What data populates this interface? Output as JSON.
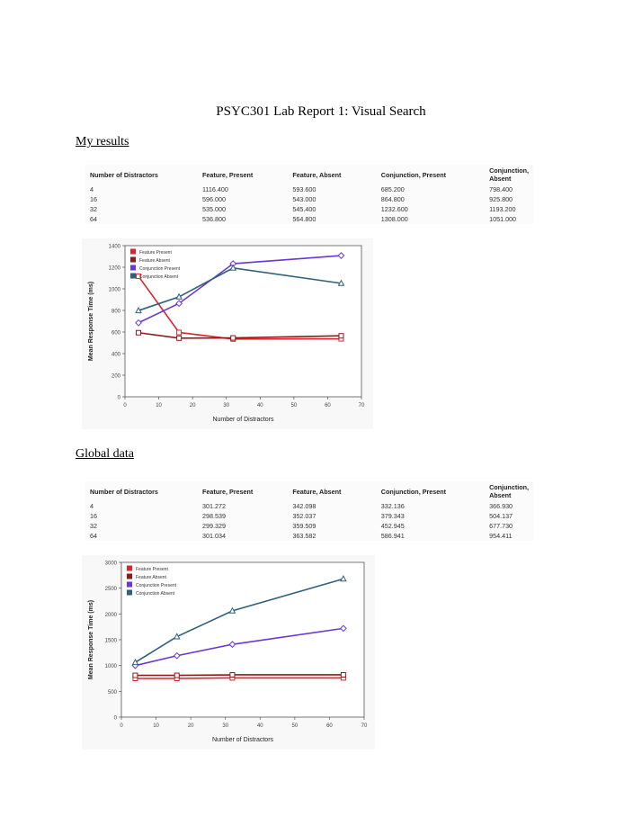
{
  "document": {
    "title": "PSYC301 Lab Report 1: Visual Search",
    "sections": [
      {
        "heading": "My results",
        "table": {
          "headers": [
            "Number of Distractors",
            "Feature, Present",
            "Feature, Absent",
            "Conjunction, Present",
            "Conjunction, Absent"
          ],
          "rows": [
            [
              "4",
              "1116.400",
              "593.600",
              "685.200",
              "798.400"
            ],
            [
              "16",
              "596.000",
              "543.000",
              "864.800",
              "925.800"
            ],
            [
              "32",
              "535.000",
              "545.400",
              "1232.600",
              "1193.200"
            ],
            [
              "64",
              "536.800",
              "564.800",
              "1308.000",
              "1051.000"
            ]
          ]
        }
      },
      {
        "heading": "Global data",
        "table": {
          "headers": [
            "Number of Distractors",
            "Feature, Present",
            "Feature, Absent",
            "Conjunction, Present",
            "Conjunction, Absent"
          ],
          "rows": [
            [
              "4",
              "301.272",
              "342.098",
              "332.136",
              "366.930"
            ],
            [
              "16",
              "298.539",
              "352.037",
              "379.343",
              "504.137"
            ],
            [
              "32",
              "299.329",
              "359.509",
              "452.945",
              "677.730"
            ],
            [
              "64",
              "301.034",
              "363.582",
              "586.941",
              "954.411"
            ]
          ]
        }
      }
    ]
  },
  "chart_data": [
    {
      "type": "line",
      "xlabel": "Number of Distractors",
      "ylabel": "Mean Response Time (ms)",
      "xlim": [
        0,
        70
      ],
      "ylim": [
        0,
        1400
      ],
      "xticks": [
        0,
        10,
        20,
        30,
        40,
        50,
        60,
        70
      ],
      "yticks": [
        0,
        200,
        400,
        600,
        800,
        1000,
        1200,
        1400
      ],
      "legend_position": "top-left",
      "x": [
        4,
        16,
        32,
        64
      ],
      "series": [
        {
          "name": "Feature Present",
          "color": "#d9262e",
          "marker": "square",
          "values": [
            1116.4,
            596.0,
            535.0,
            536.8
          ]
        },
        {
          "name": "Feature Absent",
          "color": "#8e1b1b",
          "marker": "square",
          "values": [
            593.6,
            543.0,
            545.4,
            564.8
          ]
        },
        {
          "name": "Conjunction Present",
          "color": "#6a36d6",
          "marker": "diamond",
          "values": [
            685.2,
            864.8,
            1232.6,
            1308.0
          ]
        },
        {
          "name": "Conjunction Absent",
          "color": "#2e5f7d",
          "marker": "triangle",
          "values": [
            798.4,
            925.8,
            1193.2,
            1051.0
          ]
        }
      ]
    },
    {
      "type": "line",
      "xlabel": "Number of Distractors",
      "ylabel": "Mean Response Time (ms)",
      "xlim": [
        0,
        70
      ],
      "ylim": [
        0,
        3000
      ],
      "xticks": [
        0,
        10,
        20,
        30,
        40,
        50,
        60,
        70
      ],
      "yticks": [
        0,
        500,
        1000,
        1500,
        2000,
        2500,
        3000
      ],
      "legend_position": "top-left",
      "x": [
        4,
        16,
        32,
        64
      ],
      "series": [
        {
          "name": "Feature Present",
          "color": "#d9262e",
          "marker": "square",
          "values": [
            750,
            750,
            760,
            760
          ]
        },
        {
          "name": "Feature Absent",
          "color": "#8e1b1b",
          "marker": "square",
          "values": [
            810,
            810,
            820,
            820
          ]
        },
        {
          "name": "Conjunction Present",
          "color": "#6a36d6",
          "marker": "diamond",
          "values": [
            1000,
            1190,
            1410,
            1720
          ]
        },
        {
          "name": "Conjunction Absent",
          "color": "#2e5f7d",
          "marker": "triangle",
          "values": [
            1060,
            1560,
            2060,
            2680
          ]
        }
      ]
    }
  ]
}
